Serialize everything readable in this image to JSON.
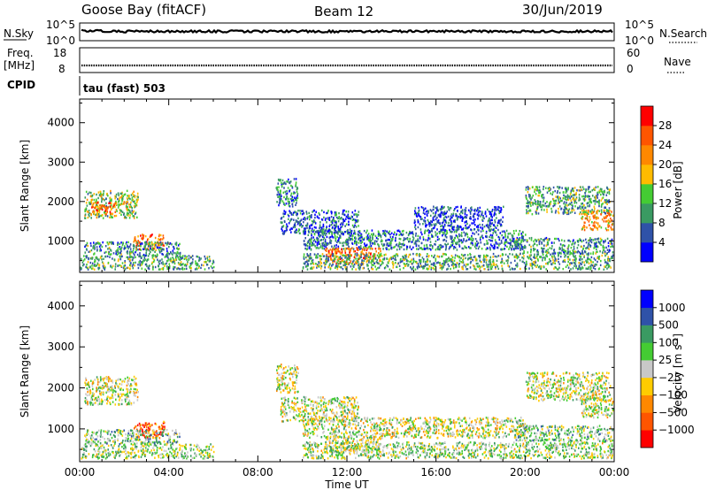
{
  "header": {
    "station": "Goose Bay (fitACF)",
    "beam": "Beam 12",
    "date": "30/Jun/2019"
  },
  "nsky_panel": {
    "left_label": "N.Sky",
    "right_label": "N.Search",
    "tick_top": "10^5",
    "tick_bottom": "10^0"
  },
  "freq_panel": {
    "left_label_line1": "Freq.",
    "left_label_line2": "[MHz]",
    "left_tick_top": "18",
    "left_tick_bottom": "8",
    "right_label": "Nave",
    "right_tick_top": "60",
    "right_tick_bottom": "0"
  },
  "cpid": {
    "label": "CPID",
    "value": "tau (fast) 503"
  },
  "colors": {
    "power": [
      "#0000ff",
      "#2f52a8",
      "#3a9a62",
      "#44cc33",
      "#ffbb00",
      "#ff8800",
      "#ff5500",
      "#ff0000"
    ],
    "velocity": [
      "#ff0000",
      "#ff5500",
      "#ff8800",
      "#ffcc00",
      "#c8c8c8",
      "#44cc33",
      "#3a9a62",
      "#2f52a8",
      "#0000ff"
    ],
    "trace": "#000000"
  },
  "chart_data": [
    {
      "type": "heatmap",
      "name": "power",
      "ylabel": "Slant Range [km]",
      "ylim": [
        200,
        4600
      ],
      "yticks": [
        "1000",
        "2000",
        "3000",
        "4000"
      ],
      "xlim_hours": [
        0,
        24
      ],
      "colorbar": {
        "label": "Power [dB]",
        "ticks": [
          "4",
          "8",
          "12",
          "16",
          "20",
          "24",
          "28"
        ],
        "range": [
          0,
          32
        ]
      },
      "echo_regions": [
        {
          "t": [
            0.2,
            2.6
          ],
          "r": [
            1600,
            2300
          ],
          "level": 0.45
        },
        {
          "t": [
            0.5,
            1.6
          ],
          "r": [
            1700,
            2000
          ],
          "level": 0.75
        },
        {
          "t": [
            2.4,
            3.8
          ],
          "r": [
            800,
            1200
          ],
          "level": 0.8
        },
        {
          "t": [
            0.0,
            6.0
          ],
          "r": [
            300,
            650
          ],
          "level": 0.35
        },
        {
          "t": [
            0.2,
            4.5
          ],
          "r": [
            650,
            1000
          ],
          "level": 0.3
        },
        {
          "t": [
            8.8,
            9.8
          ],
          "r": [
            1900,
            2600
          ],
          "level": 0.25
        },
        {
          "t": [
            9.0,
            12.5
          ],
          "r": [
            1200,
            1800
          ],
          "level": 0.2
        },
        {
          "t": [
            10.0,
            20.0
          ],
          "r": [
            800,
            1300
          ],
          "level": 0.25
        },
        {
          "t": [
            11.0,
            13.5
          ],
          "r": [
            450,
            850
          ],
          "level": 0.75
        },
        {
          "t": [
            10.0,
            24.0
          ],
          "r": [
            300,
            700
          ],
          "level": 0.35
        },
        {
          "t": [
            15.0,
            19.0
          ],
          "r": [
            1300,
            1900
          ],
          "level": 0.15
        },
        {
          "t": [
            20.0,
            23.8
          ],
          "r": [
            1700,
            2400
          ],
          "level": 0.35
        },
        {
          "t": [
            22.5,
            24.0
          ],
          "r": [
            1300,
            1800
          ],
          "level": 0.65
        },
        {
          "t": [
            19.5,
            24.0
          ],
          "r": [
            700,
            1100
          ],
          "level": 0.3
        }
      ]
    },
    {
      "type": "heatmap",
      "name": "velocity",
      "ylabel": "Slant Range [km]",
      "xlabel": "Time UT",
      "ylim": [
        200,
        4600
      ],
      "yticks": [
        "1000",
        "2000",
        "3000",
        "4000"
      ],
      "xticks": [
        "00:00",
        "04:00",
        "08:00",
        "12:00",
        "16:00",
        "20:00",
        "00:00"
      ],
      "xlim_hours": [
        0,
        24
      ],
      "colorbar": {
        "label": "Velocity [m s",
        "label_sup": "-1",
        "label_end": "]",
        "ticks": [
          "-1000",
          "-500",
          "-100",
          "-25",
          "25",
          "100",
          "500",
          "1000"
        ],
        "range": [
          -2000,
          2000
        ]
      },
      "echo_regions": [
        {
          "t": [
            0.2,
            2.6
          ],
          "r": [
            1600,
            2300
          ],
          "level": 0.5
        },
        {
          "t": [
            2.4,
            3.8
          ],
          "r": [
            800,
            1200
          ],
          "level": 0.2
        },
        {
          "t": [
            0.0,
            6.0
          ],
          "r": [
            300,
            650
          ],
          "level": 0.55
        },
        {
          "t": [
            0.2,
            4.5
          ],
          "r": [
            650,
            1000
          ],
          "level": 0.6
        },
        {
          "t": [
            8.8,
            9.8
          ],
          "r": [
            1900,
            2600
          ],
          "level": 0.5
        },
        {
          "t": [
            9.0,
            12.5
          ],
          "r": [
            1200,
            1800
          ],
          "level": 0.5
        },
        {
          "t": [
            10.0,
            20.0
          ],
          "r": [
            800,
            1300
          ],
          "level": 0.5
        },
        {
          "t": [
            11.0,
            13.5
          ],
          "r": [
            450,
            850
          ],
          "level": 0.5
        },
        {
          "t": [
            10.0,
            24.0
          ],
          "r": [
            300,
            700
          ],
          "level": 0.55
        },
        {
          "t": [
            20.0,
            23.8
          ],
          "r": [
            1700,
            2400
          ],
          "level": 0.5
        },
        {
          "t": [
            22.5,
            24.0
          ],
          "r": [
            1300,
            1800
          ],
          "level": 0.5
        },
        {
          "t": [
            19.5,
            24.0
          ],
          "r": [
            700,
            1100
          ],
          "level": 0.6
        }
      ]
    }
  ]
}
